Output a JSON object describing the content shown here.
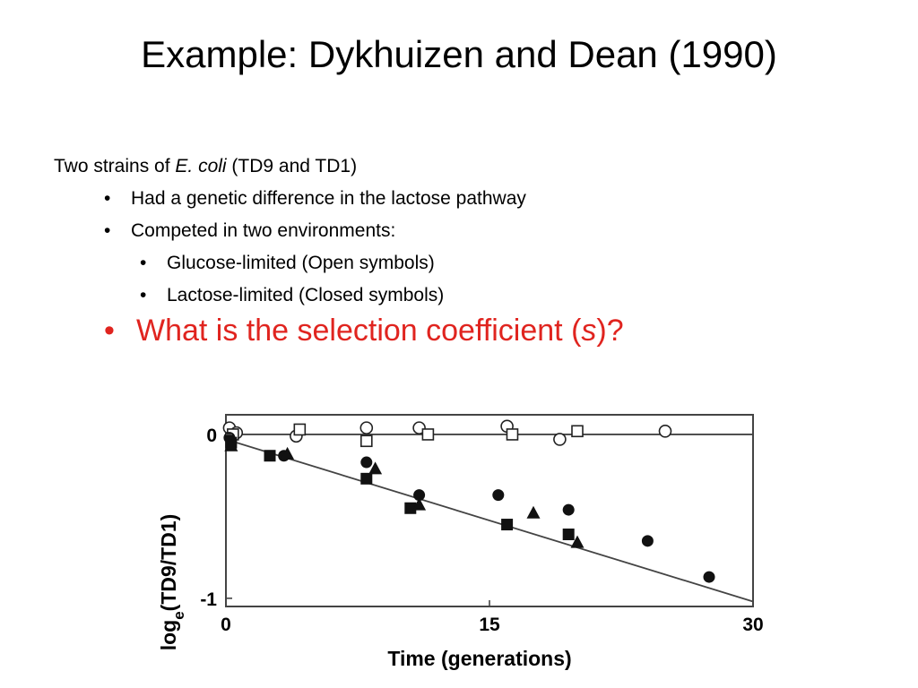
{
  "slide": {
    "title": "Example:  Dykhuizen and Dean (1990)",
    "intro_prefix": "Two strains of ",
    "intro_italic": "E. coli",
    "intro_suffix": " (TD9 and TD1)",
    "bullets": [
      "Had a genetic difference in the lactose pathway",
      "Competed in two environments:"
    ],
    "sub_bullets": [
      "Glucose-limited (Open symbols)",
      "Lactose-limited (Closed symbols)"
    ],
    "question_prefix": "What is the selection coefficient (",
    "question_italic": "s",
    "question_suffix": ")?",
    "bullet_char": "•",
    "question_color": "#e0241f"
  },
  "chart_data": {
    "type": "scatter",
    "title": "",
    "xlabel": "Time (generations)",
    "ylabel_main": "log",
    "ylabel_sub": "e",
    "ylabel_rest": "(TD9/TD1)",
    "xlim": [
      0,
      30
    ],
    "ylim": [
      -1.05,
      0.12
    ],
    "xticks": [
      {
        "v": 0,
        "label": "0"
      },
      {
        "v": 15,
        "label": "15"
      },
      {
        "v": 30,
        "label": "30"
      }
    ],
    "yticks": [
      {
        "v": 0,
        "label": "0"
      },
      {
        "v": -1,
        "label": "-1"
      }
    ],
    "grid": false,
    "legend": "none",
    "series": [
      {
        "marker": "open-circle",
        "points": [
          [
            0.2,
            0.04
          ],
          [
            0.6,
            0.01
          ],
          [
            4.0,
            -0.01
          ],
          [
            8.0,
            0.04
          ],
          [
            11.0,
            0.04
          ],
          [
            16.0,
            0.05
          ],
          [
            19.0,
            -0.03
          ],
          [
            25.0,
            0.02
          ]
        ]
      },
      {
        "marker": "open-square",
        "points": [
          [
            0.4,
            0.0
          ],
          [
            4.2,
            0.03
          ],
          [
            8.0,
            -0.04
          ],
          [
            11.5,
            0.0
          ],
          [
            16.3,
            0.0
          ],
          [
            20.0,
            0.02
          ]
        ]
      },
      {
        "marker": "filled-circle",
        "points": [
          [
            0.2,
            -0.02
          ],
          [
            3.3,
            -0.13
          ],
          [
            8.0,
            -0.17
          ],
          [
            11.0,
            -0.37
          ],
          [
            15.5,
            -0.37
          ],
          [
            19.5,
            -0.46
          ],
          [
            24.0,
            -0.65
          ],
          [
            27.5,
            -0.87
          ]
        ]
      },
      {
        "marker": "filled-square",
        "points": [
          [
            0.3,
            -0.05
          ],
          [
            2.5,
            -0.13
          ],
          [
            8.0,
            -0.27
          ],
          [
            10.5,
            -0.45
          ],
          [
            16.0,
            -0.55
          ],
          [
            19.5,
            -0.61
          ]
        ]
      },
      {
        "marker": "filled-triangle",
        "points": [
          [
            0.3,
            -0.07
          ],
          [
            3.5,
            -0.12
          ],
          [
            8.5,
            -0.21
          ],
          [
            11.0,
            -0.43
          ],
          [
            17.5,
            -0.48
          ],
          [
            20.0,
            -0.66
          ]
        ]
      }
    ],
    "lines": [
      {
        "from": [
          0,
          0
        ],
        "to": [
          30,
          0
        ]
      },
      {
        "from": [
          0,
          -0.03
        ],
        "to": [
          30,
          -1.02
        ]
      }
    ]
  }
}
